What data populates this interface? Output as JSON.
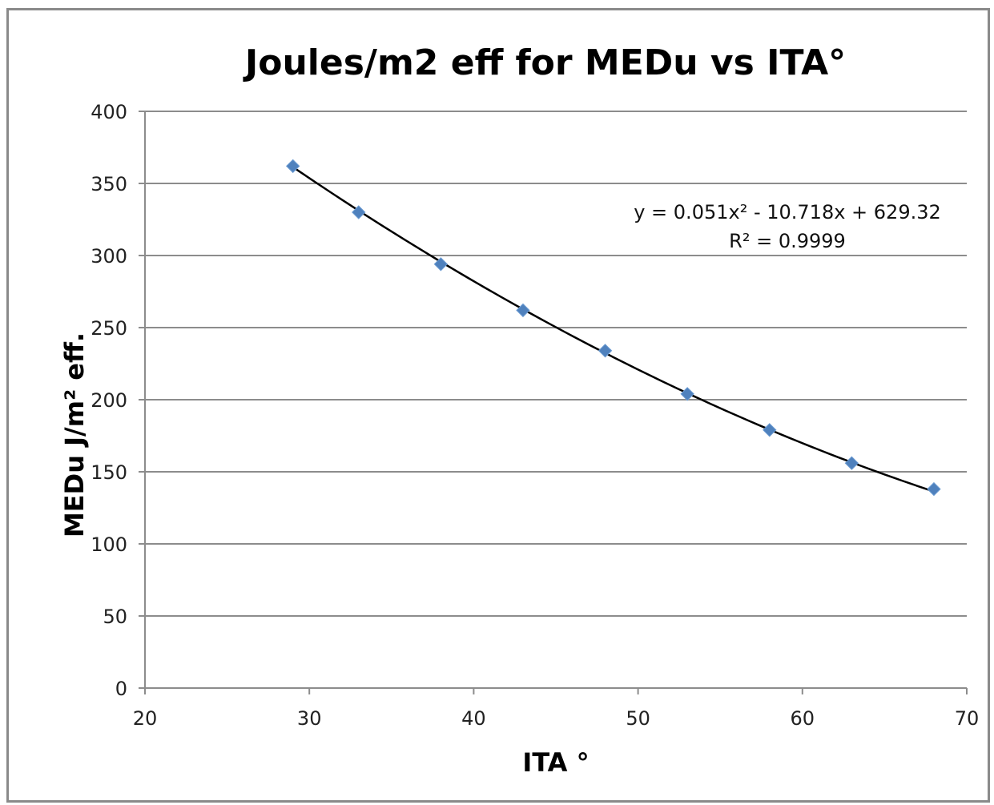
{
  "chart_data": {
    "type": "scatter",
    "title": "Joules/m2 eff for MEDu vs ITA°",
    "xlabel": "ITA °",
    "ylabel": "MEDu  J/m² eff.",
    "xlim": [
      20,
      70
    ],
    "ylim": [
      0,
      400
    ],
    "xticks": [
      "20",
      "30",
      "40",
      "50",
      "60",
      "70"
    ],
    "yticks": [
      "0",
      "50",
      "100",
      "150",
      "200",
      "250",
      "300",
      "350",
      "400"
    ],
    "grid": "horizontal",
    "legend": "none",
    "marker": "diamond",
    "point_color": "#4f81bd",
    "trendline_color": "#000000",
    "series": [
      {
        "x": [
          29,
          33,
          38,
          43,
          48,
          53,
          58,
          63,
          68
        ],
        "y": [
          362,
          330,
          294,
          262,
          234,
          204,
          179,
          156,
          138
        ]
      }
    ],
    "trendline": {
      "type": "polynomial",
      "coefficients": [
        0.051,
        -10.718,
        629.32
      ],
      "equation": "y = 0.051x² - 10.718x + 629.32",
      "r_squared": "R² = 0.9999"
    }
  }
}
